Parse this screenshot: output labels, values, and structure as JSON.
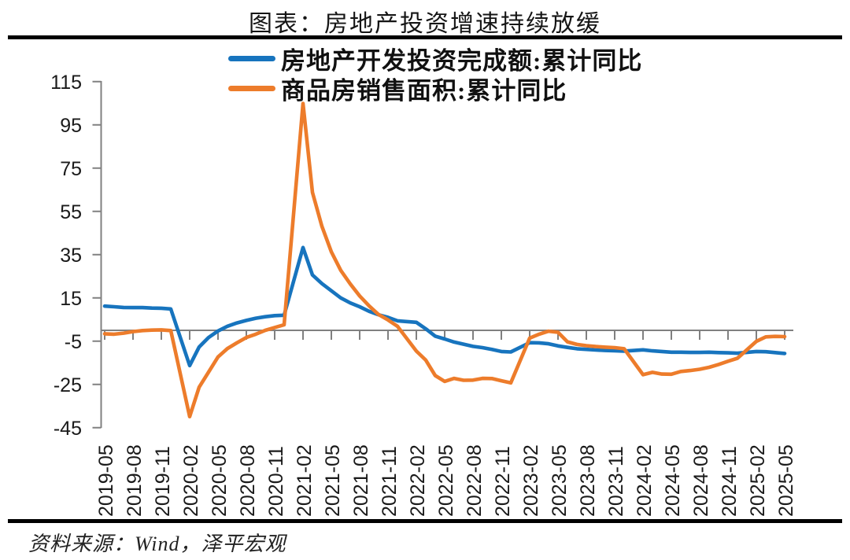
{
  "page": {
    "title": "图表：房地产投资增速持续放缓",
    "source_note": "资料来源：Wind，泽平宏观"
  },
  "legend": {
    "items": [
      {
        "label": "房地产开发投资完成额:累计同比",
        "color": "#1774BE"
      },
      {
        "label": "商品房销售面积:累计同比",
        "color": "#ED7C2B"
      }
    ]
  },
  "colors": {
    "axis_gray": "#808080",
    "rule_black": "#000000",
    "text_black": "#1a1a1a",
    "series_blue": "#1774BE",
    "series_orange": "#ED7C2B"
  },
  "chart_data": {
    "type": "line",
    "title": "图表：房地产投资增速持续放缓",
    "xlabel": "",
    "ylabel": "",
    "grid": false,
    "zero_axis_line": true,
    "legend_position": "top",
    "x_unit": "month (cumulative YoY series, January not published)",
    "x_tick_labels": [
      "2019-05",
      "2019-08",
      "2019-11",
      "2020-02",
      "2020-05",
      "2020-08",
      "2020-11",
      "2021-02",
      "2021-05",
      "2021-08",
      "2021-11",
      "2022-02",
      "2022-05",
      "2022-08",
      "2022-11",
      "2023-02",
      "2023-05",
      "2023-08",
      "2023-11",
      "2024-02",
      "2024-05",
      "2024-08",
      "2024-11",
      "2025-02",
      "2025-05"
    ],
    "x_tick_month_offsets": [
      0,
      3,
      6,
      9,
      12,
      15,
      18,
      21,
      24,
      27,
      30,
      33,
      36,
      39,
      42,
      45,
      48,
      51,
      54,
      57,
      60,
      63,
      66,
      69,
      72
    ],
    "y_axis": {
      "min": -45,
      "max": 115,
      "tick_step": 20,
      "tick_values": [
        115,
        95,
        75,
        55,
        35,
        15,
        -5,
        -25,
        -45
      ]
    },
    "series": [
      {
        "name": "房地产开发投资完成额:累计同比",
        "color": "#1774BE",
        "points": [
          [
            0,
            11.2
          ],
          [
            1,
            10.9
          ],
          [
            2,
            10.6
          ],
          [
            3,
            10.5
          ],
          [
            4,
            10.5
          ],
          [
            5,
            10.3
          ],
          [
            6,
            10.2
          ],
          [
            7,
            9.9
          ],
          [
            9,
            -16.3
          ],
          [
            10,
            -7.7
          ],
          [
            11,
            -3.3
          ],
          [
            12,
            -0.3
          ],
          [
            13,
            1.9
          ],
          [
            14,
            3.4
          ],
          [
            15,
            4.6
          ],
          [
            16,
            5.6
          ],
          [
            17,
            6.3
          ],
          [
            18,
            6.8
          ],
          [
            19,
            7.0
          ],
          [
            21,
            38.3
          ],
          [
            22,
            25.6
          ],
          [
            23,
            21.6
          ],
          [
            24,
            18.3
          ],
          [
            25,
            15.0
          ],
          [
            26,
            12.7
          ],
          [
            27,
            10.9
          ],
          [
            28,
            8.8
          ],
          [
            29,
            7.2
          ],
          [
            30,
            6.0
          ],
          [
            31,
            4.4
          ],
          [
            33,
            3.7
          ],
          [
            34,
            0.7
          ],
          [
            35,
            -2.7
          ],
          [
            36,
            -4.0
          ],
          [
            37,
            -5.4
          ],
          [
            38,
            -6.4
          ],
          [
            39,
            -7.4
          ],
          [
            40,
            -8.0
          ],
          [
            41,
            -8.8
          ],
          [
            42,
            -9.8
          ],
          [
            43,
            -10.0
          ],
          [
            45,
            -5.7
          ],
          [
            46,
            -5.8
          ],
          [
            47,
            -6.2
          ],
          [
            48,
            -7.2
          ],
          [
            49,
            -7.9
          ],
          [
            50,
            -8.5
          ],
          [
            51,
            -8.8
          ],
          [
            52,
            -9.1
          ],
          [
            53,
            -9.3
          ],
          [
            54,
            -9.4
          ],
          [
            55,
            -9.6
          ],
          [
            57,
            -9.0
          ],
          [
            58,
            -9.5
          ],
          [
            59,
            -9.8
          ],
          [
            60,
            -10.1
          ],
          [
            61,
            -10.1
          ],
          [
            62,
            -10.2
          ],
          [
            63,
            -10.2
          ],
          [
            64,
            -10.1
          ],
          [
            65,
            -10.3
          ],
          [
            66,
            -10.4
          ],
          [
            67,
            -10.6
          ],
          [
            69,
            -9.8
          ],
          [
            70,
            -9.9
          ],
          [
            71,
            -10.3
          ],
          [
            72,
            -10.7
          ]
        ]
      },
      {
        "name": "商品房销售面积:累计同比",
        "color": "#ED7C2B",
        "points": [
          [
            0,
            -1.6
          ],
          [
            1,
            -1.8
          ],
          [
            2,
            -1.3
          ],
          [
            3,
            -0.6
          ],
          [
            4,
            -0.1
          ],
          [
            5,
            0.1
          ],
          [
            6,
            0.2
          ],
          [
            7,
            -0.1
          ],
          [
            9,
            -39.9
          ],
          [
            10,
            -26.3
          ],
          [
            11,
            -19.3
          ],
          [
            12,
            -12.3
          ],
          [
            13,
            -8.4
          ],
          [
            14,
            -5.8
          ],
          [
            15,
            -3.3
          ],
          [
            16,
            -1.8
          ],
          [
            17,
            0
          ],
          [
            18,
            1.3
          ],
          [
            19,
            2.6
          ],
          [
            21,
            104.9
          ],
          [
            22,
            63.8
          ],
          [
            23,
            48.1
          ],
          [
            24,
            36.3
          ],
          [
            25,
            27.7
          ],
          [
            26,
            21.5
          ],
          [
            27,
            15.9
          ],
          [
            28,
            11.3
          ],
          [
            29,
            7.3
          ],
          [
            30,
            4.8
          ],
          [
            31,
            1.9
          ],
          [
            33,
            -9.6
          ],
          [
            34,
            -13.8
          ],
          [
            35,
            -20.9
          ],
          [
            36,
            -23.6
          ],
          [
            37,
            -22.2
          ],
          [
            38,
            -23.1
          ],
          [
            39,
            -23.0
          ],
          [
            40,
            -22.2
          ],
          [
            41,
            -22.3
          ],
          [
            42,
            -23.3
          ],
          [
            43,
            -24.3
          ],
          [
            45,
            -3.6
          ],
          [
            46,
            -1.8
          ],
          [
            47,
            -0.4
          ],
          [
            48,
            -0.9
          ],
          [
            49,
            -5.3
          ],
          [
            50,
            -6.5
          ],
          [
            51,
            -7.1
          ],
          [
            52,
            -7.5
          ],
          [
            53,
            -7.8
          ],
          [
            54,
            -8.0
          ],
          [
            55,
            -8.5
          ],
          [
            57,
            -20.5
          ],
          [
            58,
            -19.4
          ],
          [
            59,
            -20.2
          ],
          [
            60,
            -20.3
          ],
          [
            61,
            -19.0
          ],
          [
            62,
            -18.6
          ],
          [
            63,
            -18.0
          ],
          [
            64,
            -17.1
          ],
          [
            65,
            -15.8
          ],
          [
            66,
            -14.3
          ],
          [
            67,
            -12.9
          ],
          [
            69,
            -5.1
          ],
          [
            70,
            -3.0
          ],
          [
            71,
            -2.8
          ],
          [
            72,
            -2.9
          ]
        ]
      }
    ]
  }
}
